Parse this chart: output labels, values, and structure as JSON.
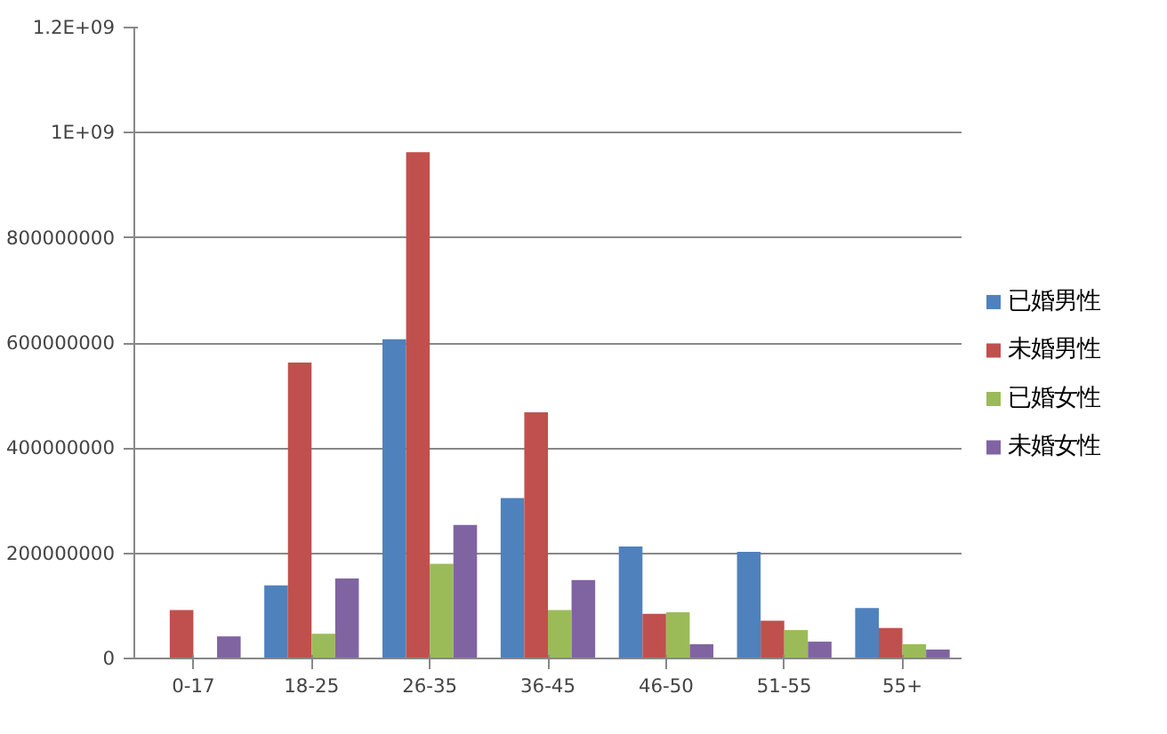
{
  "chart_data": {
    "type": "bar",
    "categories": [
      "0-17",
      "18-25",
      "26-35",
      "36-45",
      "46-50",
      "51-55",
      "55+"
    ],
    "series": [
      {
        "name": "已婚男性",
        "color": "#4f81bd",
        "values": [
          0,
          139000000,
          607000000,
          305000000,
          213000000,
          203000000,
          96000000
        ]
      },
      {
        "name": "未婚男性",
        "color": "#c0504d",
        "values": [
          92000000,
          563000000,
          963000000,
          468000000,
          85000000,
          72000000,
          58000000
        ]
      },
      {
        "name": "已婚女性",
        "color": "#9bbb59",
        "values": [
          0,
          47000000,
          180000000,
          92000000,
          88000000,
          54000000,
          27000000
        ]
      },
      {
        "name": "未婚女性",
        "color": "#8064a2",
        "values": [
          42000000,
          152000000,
          254000000,
          149000000,
          27000000,
          32000000,
          17000000
        ]
      }
    ],
    "ylim": [
      0,
      1200000000
    ],
    "yticks": [
      0,
      200000000,
      400000000,
      600000000,
      800000000,
      {
        "value": 1000000000,
        "label": "1E+09"
      },
      {
        "value": 1200000000,
        "label": "1.2E+09"
      }
    ],
    "grid": "y",
    "legend": "right"
  }
}
